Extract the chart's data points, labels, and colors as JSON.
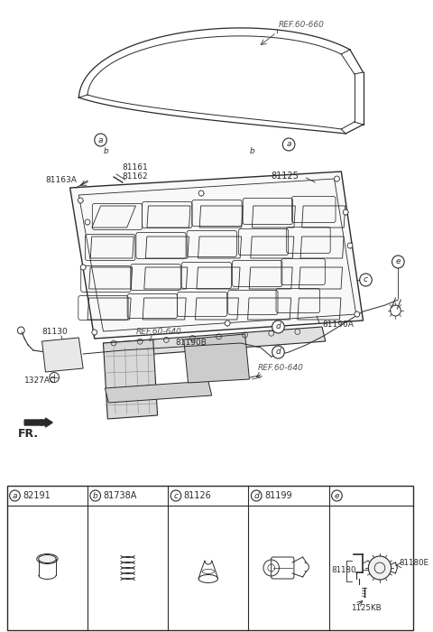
{
  "bg_color": "#ffffff",
  "line_color": "#2a2a2a",
  "label_color": "#2a2a2a",
  "ref_color": "#555555",
  "part_numbers": {
    "REF_60_660": "REF.60-660",
    "n81161": "81161",
    "n81162": "81162",
    "n81163A": "81163A",
    "n81125": "81125",
    "n81130": "81130",
    "n1327AC": "1327AC",
    "n81190B": "81190B",
    "n81190A": "81190A",
    "REF_60_640a": "REF.60-640",
    "REF_60_640b": "REF.60-640",
    "n81180": "81180",
    "n81180E": "81180E",
    "n1125KB": "1125KB"
  },
  "fr_label": "FR.",
  "table_headers": [
    "a",
    "b",
    "c",
    "d",
    "e"
  ],
  "table_nums": [
    "82191",
    "81738A",
    "81126",
    "81199",
    ""
  ]
}
